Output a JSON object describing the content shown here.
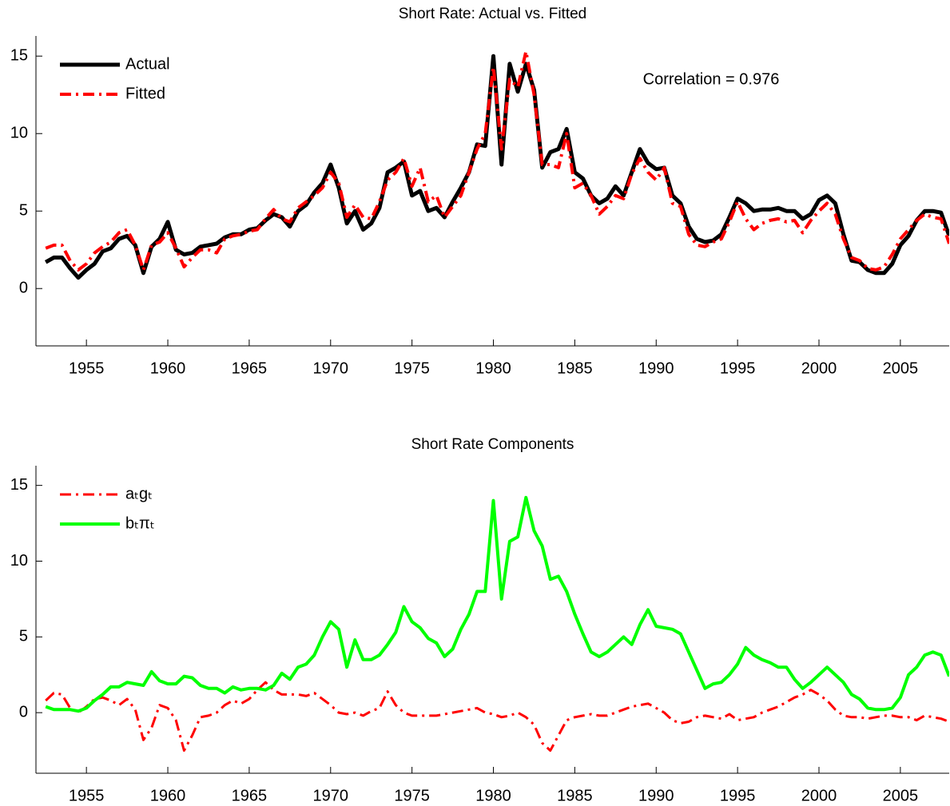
{
  "chart_data": [
    {
      "type": "line",
      "title": "Short Rate: Actual vs. Fitted",
      "annotation": "Correlation = 0.976",
      "xlim": [
        1951.9,
        2008
      ],
      "ylim": [
        -3.7,
        16.3
      ],
      "xticks": [
        1955,
        1960,
        1965,
        1970,
        1975,
        1980,
        1985,
        1990,
        1995,
        2000,
        2005
      ],
      "yticks": [
        0,
        5,
        10,
        15
      ],
      "grid": false,
      "legend": "upper left",
      "x": [
        1952.5,
        1953,
        1953.5,
        1954,
        1954.5,
        1955,
        1955.5,
        1956,
        1956.5,
        1957,
        1957.5,
        1958,
        1958.5,
        1959,
        1959.5,
        1960,
        1960.5,
        1961,
        1961.5,
        1962,
        1962.5,
        1963,
        1963.5,
        1964,
        1964.5,
        1965,
        1965.5,
        1966,
        1966.5,
        1967,
        1967.5,
        1968,
        1968.5,
        1969,
        1969.5,
        1970,
        1970.5,
        1971,
        1971.5,
        1972,
        1972.5,
        1973,
        1973.5,
        1974,
        1974.5,
        1975,
        1975.5,
        1976,
        1976.5,
        1977,
        1977.5,
        1978,
        1978.5,
        1979,
        1979.5,
        1980,
        1980.5,
        1981,
        1981.5,
        1982,
        1982.5,
        1983,
        1983.5,
        1984,
        1984.5,
        1985,
        1985.5,
        1986,
        1986.5,
        1987,
        1987.5,
        1988,
        1988.5,
        1989,
        1989.5,
        1990,
        1990.5,
        1991,
        1991.5,
        1992,
        1992.5,
        1993,
        1993.5,
        1994,
        1994.5,
        1995,
        1995.5,
        1996,
        1996.5,
        1997,
        1997.5,
        1998,
        1998.5,
        1999,
        1999.5,
        2000,
        2000.5,
        2001,
        2001.5,
        2002,
        2002.5,
        2003,
        2003.5,
        2004,
        2004.5,
        2005,
        2005.5,
        2006,
        2006.5,
        2007,
        2007.5,
        2008
      ],
      "series": [
        {
          "name": "Actual",
          "color": "#000000",
          "style": "solid",
          "width": 5,
          "values": [
            1.7,
            2.0,
            2.0,
            1.3,
            0.7,
            1.2,
            1.6,
            2.4,
            2.6,
            3.2,
            3.4,
            2.8,
            1.0,
            2.7,
            3.2,
            4.3,
            2.5,
            2.2,
            2.3,
            2.7,
            2.8,
            2.9,
            3.3,
            3.5,
            3.5,
            3.8,
            3.9,
            4.4,
            4.8,
            4.6,
            4.0,
            5.0,
            5.4,
            6.2,
            6.8,
            8.0,
            6.5,
            4.2,
            5.0,
            3.8,
            4.2,
            5.2,
            7.5,
            7.8,
            8.2,
            6.0,
            6.3,
            5.0,
            5.2,
            4.6,
            5.6,
            6.5,
            7.5,
            9.3,
            9.2,
            15.0,
            8.0,
            14.5,
            12.7,
            14.5,
            12.8,
            7.8,
            8.8,
            9.0,
            10.3,
            7.5,
            7.1,
            6.0,
            5.5,
            5.8,
            6.6,
            6.0,
            7.5,
            9.0,
            8.1,
            7.7,
            7.8,
            6.0,
            5.5,
            4.0,
            3.2,
            3.0,
            3.1,
            3.5,
            4.6,
            5.8,
            5.5,
            5.0,
            5.1,
            5.1,
            5.2,
            5.0,
            5.0,
            4.5,
            4.8,
            5.7,
            6.0,
            5.5,
            3.5,
            1.8,
            1.7,
            1.2,
            1.0,
            1.0,
            1.6,
            2.8,
            3.4,
            4.4,
            5.0,
            5.0,
            4.9,
            3.4
          ]
        },
        {
          "name": "Fitted",
          "color": "#ff0000",
          "style": "dashdot",
          "width": 4,
          "values": [
            2.6,
            2.8,
            2.8,
            1.8,
            1.2,
            1.6,
            2.3,
            2.7,
            3.0,
            3.6,
            3.8,
            2.8,
            1.2,
            2.8,
            3.0,
            3.6,
            2.6,
            1.4,
            2.0,
            2.5,
            2.5,
            2.3,
            3.2,
            3.4,
            3.5,
            3.7,
            3.8,
            4.5,
            5.1,
            4.5,
            4.3,
            5.2,
            5.6,
            6.0,
            6.5,
            7.5,
            6.8,
            4.6,
            5.4,
            4.6,
            4.5,
            5.6,
            7.0,
            7.5,
            8.4,
            6.6,
            7.8,
            5.6,
            6.0,
            4.6,
            5.3,
            6.0,
            7.5,
            9.0,
            10.0,
            14.3,
            9.0,
            13.5,
            13.0,
            15.3,
            12.5,
            8.0,
            8.0,
            7.8,
            10.0,
            6.5,
            6.8,
            6.0,
            4.8,
            5.3,
            6.0,
            5.8,
            7.4,
            8.4,
            7.5,
            7.0,
            7.8,
            5.5,
            5.3,
            3.5,
            2.8,
            2.7,
            3.0,
            3.2,
            4.3,
            5.6,
            4.5,
            3.8,
            4.2,
            4.4,
            4.5,
            4.3,
            4.4,
            3.6,
            4.4,
            5.0,
            5.5,
            4.8,
            3.2,
            2.0,
            1.8,
            1.3,
            1.2,
            1.4,
            2.2,
            3.2,
            3.8,
            4.4,
            4.8,
            4.6,
            4.5,
            2.9
          ]
        }
      ]
    },
    {
      "type": "line",
      "title": "Short Rate Components",
      "xlim": [
        1951.9,
        2008
      ],
      "ylim": [
        -4,
        16.3
      ],
      "xticks": [
        1955,
        1960,
        1965,
        1970,
        1975,
        1980,
        1985,
        1990,
        1995,
        2000,
        2005
      ],
      "yticks": [
        0,
        5,
        10,
        15
      ],
      "grid": false,
      "legend": "upper left",
      "x": [
        1952.5,
        1953,
        1953.5,
        1954,
        1954.5,
        1955,
        1955.5,
        1956,
        1956.5,
        1957,
        1957.5,
        1958,
        1958.5,
        1959,
        1959.5,
        1960,
        1960.5,
        1961,
        1961.5,
        1962,
        1962.5,
        1963,
        1963.5,
        1964,
        1964.5,
        1965,
        1965.5,
        1966,
        1966.5,
        1967,
        1967.5,
        1968,
        1968.5,
        1969,
        1969.5,
        1970,
        1970.5,
        1971,
        1971.5,
        1972,
        1972.5,
        1973,
        1973.5,
        1974,
        1974.5,
        1975,
        1975.5,
        1976,
        1976.5,
        1977,
        1977.5,
        1978,
        1978.5,
        1979,
        1979.5,
        1980,
        1980.5,
        1981,
        1981.5,
        1982,
        1982.5,
        1983,
        1983.5,
        1984,
        1984.5,
        1985,
        1985.5,
        1986,
        1986.5,
        1987,
        1987.5,
        1988,
        1988.5,
        1989,
        1989.5,
        1990,
        1990.5,
        1991,
        1991.5,
        1992,
        1992.5,
        1993,
        1993.5,
        1994,
        1994.5,
        1995,
        1995.5,
        1996,
        1996.5,
        1997,
        1997.5,
        1998,
        1998.5,
        1999,
        1999.5,
        2000,
        2000.5,
        2001,
        2001.5,
        2002,
        2002.5,
        2003,
        2003.5,
        2004,
        2004.5,
        2005,
        2005.5,
        2006,
        2006.5,
        2007,
        2007.5,
        2008
      ],
      "series": [
        {
          "name": "aₜgₜ",
          "color": "#ff0000",
          "style": "dashdot",
          "width": 3,
          "values": [
            0.8,
            1.3,
            1.2,
            0.3,
            0.0,
            0.4,
            0.9,
            1.0,
            0.8,
            0.5,
            0.9,
            0.2,
            -1.8,
            -1.0,
            0.5,
            0.3,
            -0.5,
            -2.5,
            -1.5,
            -0.3,
            -0.2,
            0.0,
            0.5,
            0.8,
            0.6,
            0.9,
            1.5,
            2.0,
            1.5,
            1.2,
            1.2,
            1.2,
            1.1,
            1.3,
            0.9,
            0.5,
            0.0,
            -0.1,
            0.0,
            -0.2,
            0.1,
            0.3,
            1.4,
            0.5,
            0.0,
            -0.2,
            -0.2,
            -0.2,
            -0.2,
            -0.1,
            0.0,
            0.1,
            0.2,
            0.3,
            0.0,
            -0.1,
            -0.3,
            -0.2,
            0.0,
            -0.3,
            -0.8,
            -2.0,
            -2.5,
            -1.5,
            -0.5,
            -0.3,
            -0.2,
            -0.1,
            -0.2,
            -0.2,
            0.0,
            0.2,
            0.4,
            0.5,
            0.6,
            0.3,
            0.0,
            -0.5,
            -0.7,
            -0.6,
            -0.3,
            -0.2,
            -0.3,
            -0.4,
            -0.1,
            -0.5,
            -0.4,
            -0.3,
            0.0,
            0.2,
            0.4,
            0.7,
            1.0,
            1.2,
            1.5,
            1.2,
            0.8,
            0.2,
            -0.2,
            -0.3,
            -0.3,
            -0.4,
            -0.3,
            -0.2,
            -0.2,
            -0.3,
            -0.3,
            -0.5,
            -0.2,
            -0.3,
            -0.4,
            -0.6
          ]
        },
        {
          "name": "bₜπₜ",
          "color": "#00ff00",
          "style": "solid",
          "width": 4,
          "values": [
            0.4,
            0.2,
            0.2,
            0.2,
            0.1,
            0.3,
            0.8,
            1.2,
            1.7,
            1.7,
            2.0,
            1.9,
            1.8,
            2.7,
            2.1,
            1.9,
            1.9,
            2.4,
            2.3,
            1.8,
            1.6,
            1.6,
            1.3,
            1.7,
            1.5,
            1.6,
            1.6,
            1.5,
            1.8,
            2.6,
            2.2,
            3.0,
            3.2,
            3.8,
            5.0,
            6.0,
            5.5,
            3.0,
            4.8,
            3.5,
            3.5,
            3.8,
            4.5,
            5.3,
            7.0,
            6.0,
            5.6,
            4.9,
            4.6,
            3.7,
            4.2,
            5.5,
            6.5,
            8.0,
            8.0,
            14.0,
            7.5,
            11.3,
            11.6,
            14.2,
            12.0,
            11.0,
            8.8,
            9.0,
            8.0,
            6.5,
            5.2,
            4.0,
            3.7,
            4.0,
            4.5,
            5.0,
            4.5,
            5.8,
            6.8,
            5.7,
            5.6,
            5.5,
            5.2,
            4.0,
            2.8,
            1.6,
            1.9,
            2.0,
            2.5,
            3.2,
            4.3,
            3.8,
            3.5,
            3.3,
            3.0,
            3.0,
            2.2,
            1.6,
            2.0,
            2.5,
            3.0,
            2.5,
            2.0,
            1.2,
            0.9,
            0.3,
            0.2,
            0.2,
            0.3,
            1.0,
            2.5,
            3.0,
            3.8,
            4.0,
            3.8,
            2.4
          ]
        }
      ]
    }
  ]
}
